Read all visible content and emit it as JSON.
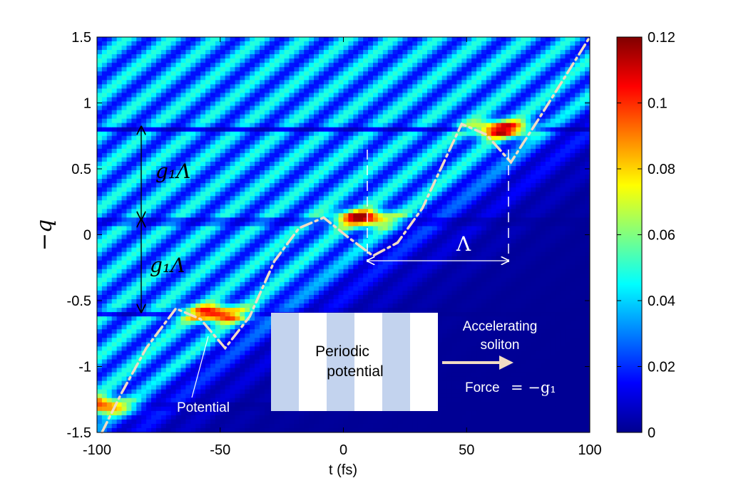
{
  "chart_data": {
    "type": "heatmap",
    "xlabel": "t (fs)",
    "ylabel": "−q",
    "xlim": [
      -100,
      100
    ],
    "ylim": [
      -1.5,
      1.5
    ],
    "x_ticks": [
      "-100",
      "-50",
      "0",
      "50",
      "100"
    ],
    "y_ticks": [
      "-1.5",
      "-1",
      "-0.5",
      "0",
      "0.5",
      "1",
      "1.5"
    ],
    "colorbar": {
      "range": [
        0,
        0.12
      ],
      "ticks": [
        "0",
        "0.02",
        "0.04",
        "0.06",
        "0.08",
        "0.1",
        "0.12"
      ]
    },
    "potential_curve": {
      "style": "dash-dot",
      "color": "#f1dcc4",
      "points": [
        [
          -98,
          -1.5
        ],
        [
          -90,
          -1.2
        ],
        [
          -80,
          -0.86
        ],
        [
          -68,
          -0.56
        ],
        [
          -58,
          -0.64
        ],
        [
          -48,
          -0.86
        ],
        [
          -38,
          -0.62
        ],
        [
          -28,
          -0.2
        ],
        [
          -18,
          0.05
        ],
        [
          -8,
          0.13
        ],
        [
          2,
          -0.02
        ],
        [
          12,
          -0.16
        ],
        [
          22,
          -0.06
        ],
        [
          32,
          0.2
        ],
        [
          42,
          0.6
        ],
        [
          48,
          0.84
        ],
        [
          58,
          0.76
        ],
        [
          68,
          0.55
        ],
        [
          80,
          0.9
        ],
        [
          100,
          1.5
        ]
      ]
    },
    "solitons": [
      {
        "t": -98,
        "q": -1.3,
        "peak": 0.09
      },
      {
        "t": -52,
        "q": -0.6,
        "peak": 0.1
      },
      {
        "t": 8,
        "q": 0.12,
        "peak": 0.1
      },
      {
        "t": 64,
        "q": 0.8,
        "peak": 0.1
      }
    ],
    "bands_q": [
      -1.3,
      -0.6,
      0.1,
      0.8
    ],
    "annotations": {
      "g1_lambda_upper": "g₁Λ",
      "g1_lambda_lower": "g₁Λ",
      "lambda": "Λ",
      "potential": "Potential",
      "inset_line1": "Periodic",
      "inset_line2": "potential",
      "accel_line1": "Accelerating",
      "accel_line2": "soliton",
      "force_label": "Force",
      "force_eq": "= −g₁"
    }
  }
}
